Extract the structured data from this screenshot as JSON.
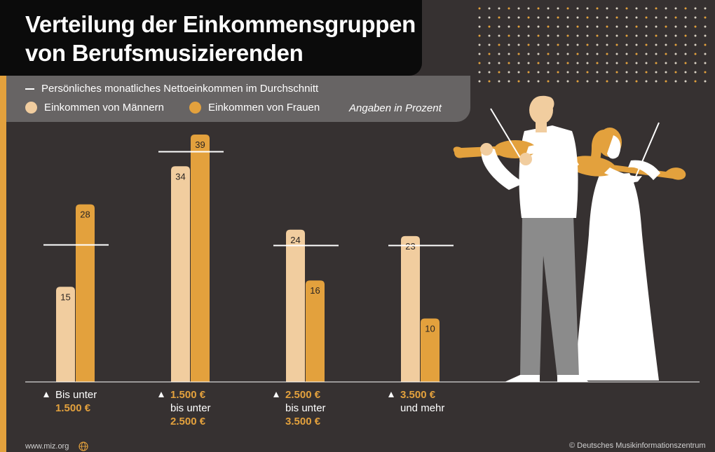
{
  "title_lines": [
    "Verteilung der Einkommensgruppen",
    "von Berufsmusizierenden"
  ],
  "legend": {
    "average_line": "Persönliches monatliches Nettoeinkommen im Durchschnitt",
    "men": "Einkommen von Männern",
    "women": "Einkommen von Frauen",
    "note": "Angaben in Prozent"
  },
  "colors": {
    "men": "#f1cd9f",
    "women": "#e3a13d",
    "background": "#363131",
    "title_background": "#0b0b0b",
    "legend_background": "#676464"
  },
  "categories": [
    {
      "lines": [
        {
          "text": "Bis unter",
          "highlight": false
        },
        {
          "text": "1.500 €",
          "highlight": true
        }
      ]
    },
    {
      "lines": [
        {
          "text": "1.500 €",
          "highlight": true
        },
        {
          "text": "bis unter",
          "highlight": false
        },
        {
          "text": "2.500 €",
          "highlight": true
        }
      ]
    },
    {
      "lines": [
        {
          "text": "2.500 €",
          "highlight": true
        },
        {
          "text": "bis unter",
          "highlight": false
        },
        {
          "text": "3.500 €",
          "highlight": true
        }
      ]
    },
    {
      "lines": [
        {
          "text": "3.500 €",
          "highlight": true
        },
        {
          "text": "und mehr",
          "highlight": false
        }
      ]
    }
  ],
  "chart_data": {
    "type": "bar",
    "categories": [
      "Bis unter 1.500 €",
      "1.500 € bis unter 2.500 €",
      "2.500 € bis unter 3.500 €",
      "3.500 € und mehr"
    ],
    "series": [
      {
        "name": "Einkommen von Männern",
        "values": [
          15,
          34,
          24,
          23
        ]
      },
      {
        "name": "Einkommen von Frauen",
        "values": [
          28,
          39,
          16,
          10
        ]
      }
    ],
    "average_line_values": [
      21.6,
      36.3,
      21.5,
      21.5
    ],
    "ylim": [
      0,
      42
    ],
    "data_labels": true,
    "grid": false,
    "legend_placement": "top"
  },
  "footer": {
    "url": "www.miz.org",
    "copyright": "© Deutsches Musikinformationszentrum"
  }
}
